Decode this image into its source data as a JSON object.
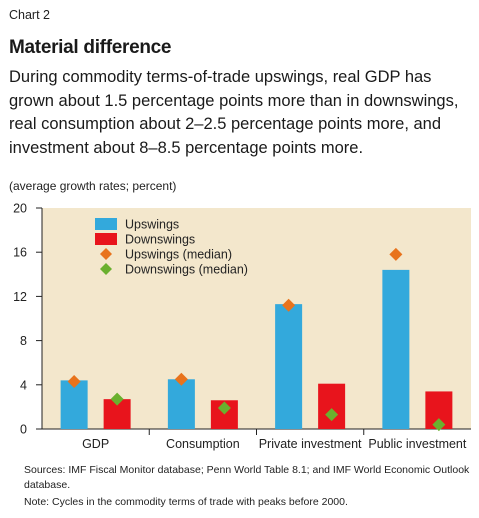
{
  "label": "Chart 2",
  "title": "Material difference",
  "subtitle": "During commodity terms-of-trade upswings, real GDP has grown about 1.5 percentage points more than in downswings, real consumption about 2–2.5 percentage points more, and investment about 8–8.5 percentage points more.",
  "unit_label": "(average growth rates; percent)",
  "sources": "Sources: IMF Fiscal Monitor database; Penn World Table 8.1; and IMF World Economic Outlook database.",
  "note": "Note: Cycles in the commodity terms of trade with peaks before 2000.",
  "colors": {
    "plot_bg": "#f3e7cc",
    "upswings": "#33a9dc",
    "downswings": "#e8141c",
    "upswings_median": "#e8731c",
    "downswings_median": "#6ab02e"
  },
  "chart_data": {
    "type": "bar",
    "categories": [
      "GDP",
      "Consumption",
      "Private investment",
      "Public investment"
    ],
    "series": [
      {
        "name": "Upswings",
        "kind": "bar",
        "values": [
          4.4,
          4.5,
          11.3,
          14.4
        ]
      },
      {
        "name": "Downswings",
        "kind": "bar",
        "values": [
          2.7,
          2.6,
          4.1,
          3.4
        ]
      },
      {
        "name": "Upswings (median)",
        "kind": "marker",
        "values": [
          4.3,
          4.5,
          11.2,
          15.8
        ]
      },
      {
        "name": "Downswings (median)",
        "kind": "marker",
        "values": [
          2.7,
          1.9,
          1.3,
          0.4
        ]
      }
    ],
    "yticks": [
      0,
      4,
      8,
      12,
      16,
      20
    ],
    "ylim": [
      0,
      20
    ],
    "grid": false,
    "legend_position": "top-left"
  }
}
